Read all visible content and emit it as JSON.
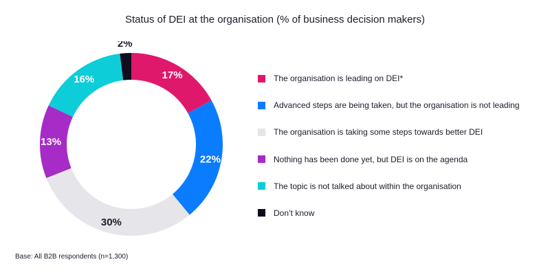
{
  "chart_data": {
    "type": "pie",
    "variant": "donut",
    "title": "Status of DEI at the organisation (% of business decision makers)",
    "value_suffix": "%",
    "categories": [
      "The organisation is leading on DEI*",
      "Advanced steps are being taken, but the organisation is not leading",
      "The organisation is taking some steps towards better DEI",
      "Nothing has been done yet, but DEI is on the agenda",
      "The topic is not talked about within the organisation",
      "Don’t know"
    ],
    "values": [
      17,
      22,
      30,
      13,
      16,
      2
    ],
    "colors": [
      "#e0186c",
      "#0a7cff",
      "#e6e6ea",
      "#a62bc7",
      "#0dcdd8",
      "#0d0d1e"
    ],
    "label_colors": [
      "#ffffff",
      "#ffffff",
      "#1a1a2e",
      "#ffffff",
      "#ffffff",
      "#1a1a2e"
    ],
    "legend_position": "right"
  },
  "footnote": "Base: All B2B respondents (n=1,300)"
}
